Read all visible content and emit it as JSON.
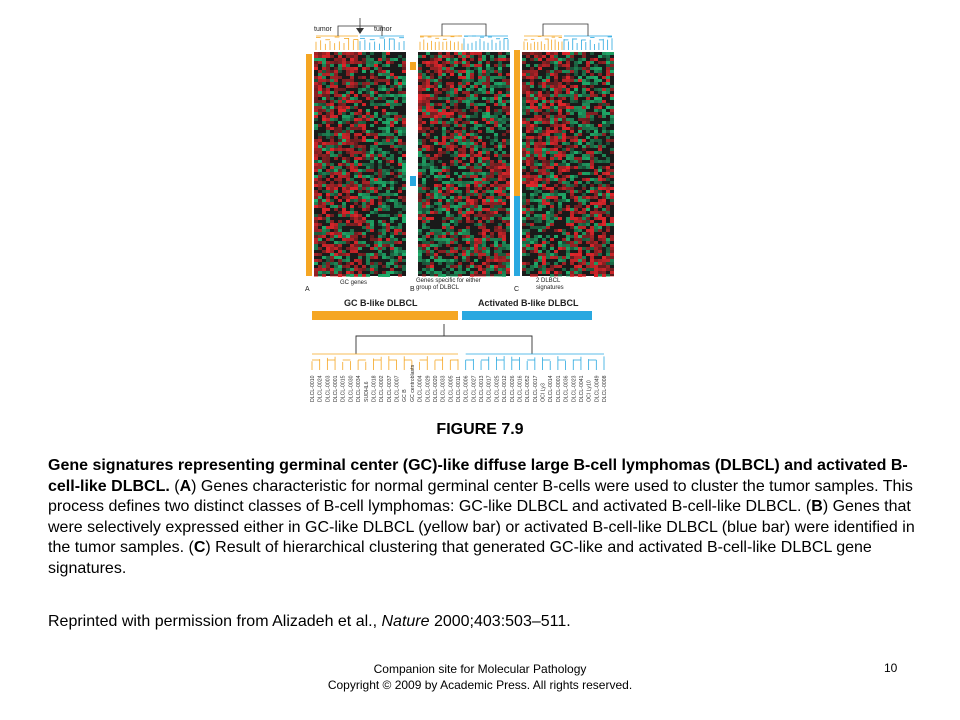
{
  "figure": {
    "panel_a": {
      "letter": "A",
      "top_left": "tumor",
      "top_right": "tumor",
      "bottom": "GC genes"
    },
    "panel_b": {
      "letter": "B",
      "bottom": "Genes specific for either group of DLBCL"
    },
    "panel_c": {
      "letter": "C",
      "bottom": "2 DLBCL signatures"
    },
    "class_gc": "GC B-like DLBCL",
    "class_activated": "Activated B-like DLBCL",
    "sample_labels": [
      "DLCL-0010",
      "DLCL-0024",
      "DLCL-0003",
      "DLCL-0001",
      "DLCL-0015",
      "DLCL-0030",
      "DLCL-0034",
      "SUDHL6",
      "DLCL-0018",
      "DLCL-0002",
      "DLCL-0037",
      "DLCL-0007",
      "GC B",
      "GC centroblasts",
      "DLCL-0004",
      "DLCL-0029",
      "DLCL-0020",
      "DLCL-0033",
      "DLCL-0005",
      "DLCL-0011",
      "DLCL-0006",
      "DLCL-0027",
      "DLCL-0013",
      "DLCL-0017",
      "DLCL-0025",
      "DLCL-0012",
      "DLCL-0026",
      "DLCL-0016",
      "DLCL-0052",
      "DLCL-0017",
      "OCI Ly3",
      "DLCL-0014",
      "DLCL-0001",
      "DLCL-0036",
      "DLCL-0023",
      "DLCL-0041",
      "OCI Ly10",
      "DLCL-0049",
      "DLCL-0008"
    ],
    "colors": {
      "orange": "#f5a623",
      "blue": "#29a8e0",
      "red": "#e0262b",
      "green": "#1fae6b"
    }
  },
  "figure_title": "FIGURE 7.9",
  "caption": {
    "bold_lead": "Gene signatures representing germinal center (GC)-like diffuse large B-cell lymphomas (DLBCL) and activated B-cell-like DLBCL.",
    "part_a_open": " (",
    "a": "A",
    "part_a": ") Genes characteristic for normal germinal center B-cells were used to cluster the tumor samples. This process defines two distinct classes of B-cell lymphomas: GC-like DLBCL and activated B-cell-like DLBCL. (",
    "b": "B",
    "part_b": ") Genes that were selectively expressed either in GC-like DLBCL (yellow bar) or activated B-cell-like DLBCL (blue bar) were identified in the tumor samples. (",
    "c": "C",
    "part_c": ") Result of hierarchical clustering that generated GC-like and activated B-cell-like DLBCL gene signatures."
  },
  "reprint": {
    "before": "Reprinted with permission from Alizadeh et al., ",
    "journal": "Nature",
    "after": " 2000;403:503–511."
  },
  "footer": {
    "line1": "Companion site for Molecular Pathology",
    "line2": "Copyright © 2009 by Academic Press. All rights reserved."
  },
  "page_number": "10"
}
